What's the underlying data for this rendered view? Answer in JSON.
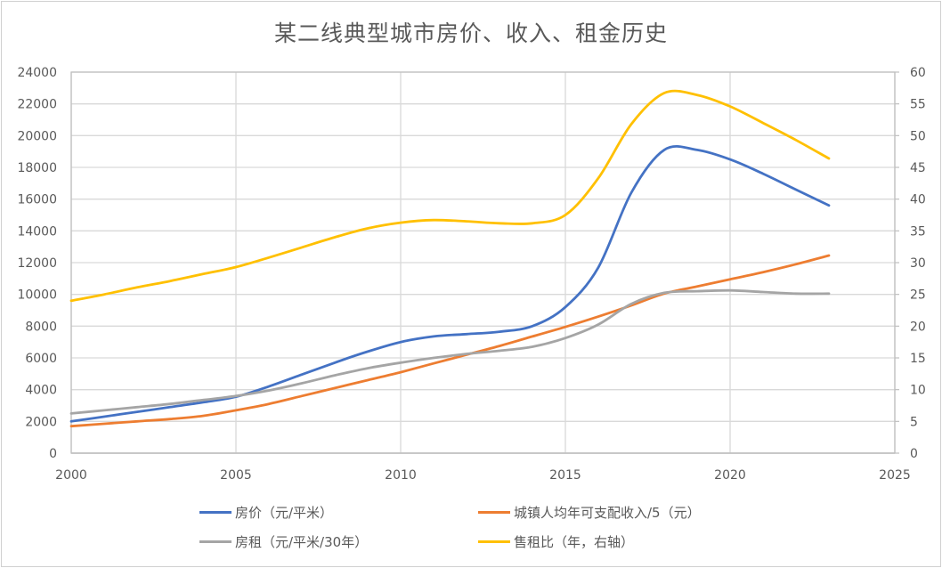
{
  "chart_data": {
    "type": "line",
    "title": "某二线典型城市房价、收入、租金历史",
    "xlabel": "",
    "ylabel": "",
    "xlim": [
      2000,
      2025
    ],
    "ylim": [
      0,
      24000
    ],
    "y2lim": [
      0,
      60
    ],
    "x_ticks": [
      "2000",
      "2005",
      "2010",
      "2015",
      "2020",
      "2025"
    ],
    "y_ticks": [
      "0",
      "2000",
      "4000",
      "6000",
      "8000",
      "10000",
      "12000",
      "14000",
      "16000",
      "18000",
      "20000",
      "22000",
      "24000"
    ],
    "y2_ticks": [
      "0",
      "5",
      "10",
      "15",
      "20",
      "25",
      "30",
      "35",
      "40",
      "45",
      "50",
      "55",
      "60"
    ],
    "grid": true,
    "legend_position": "bottom",
    "x": [
      2000,
      2001,
      2002,
      2003,
      2004,
      2005,
      2006,
      2007,
      2008,
      2009,
      2010,
      2011,
      2012,
      2013,
      2014,
      2015,
      2016,
      2017,
      2018,
      2019,
      2020,
      2021,
      2022,
      2023
    ],
    "series": [
      {
        "name": "房价（元/平米）",
        "axis": "left",
        "color": "#4472C4",
        "values": [
          2000,
          2300,
          2600,
          2900,
          3200,
          3550,
          4200,
          4950,
          5700,
          6400,
          7000,
          7350,
          7500,
          7650,
          8000,
          9200,
          11700,
          16400,
          19100,
          19100,
          18500,
          17600,
          16600,
          15600
        ]
      },
      {
        "name": "城镇人均年可支配收入/5（元）",
        "axis": "left",
        "color": "#ED7D31",
        "values": [
          1700,
          1850,
          2000,
          2150,
          2350,
          2700,
          3100,
          3600,
          4100,
          4600,
          5100,
          5650,
          6200,
          6750,
          7350,
          7950,
          8600,
          9300,
          10050,
          10500,
          10950,
          11400,
          11900,
          12450
        ]
      },
      {
        "name": "房租（元/平米/30年）",
        "axis": "left",
        "color": "#A5A5A5",
        "values": [
          2500,
          2700,
          2900,
          3100,
          3350,
          3600,
          3950,
          4400,
          4900,
          5350,
          5700,
          6000,
          6250,
          6450,
          6700,
          7250,
          8100,
          9400,
          10100,
          10200,
          10250,
          10150,
          10050,
          10050
        ]
      },
      {
        "name": "售租比（年，右轴）",
        "axis": "right",
        "color": "#FFC000",
        "values": [
          24.0,
          25.0,
          26.1,
          27.1,
          28.2,
          29.3,
          30.8,
          32.4,
          34.0,
          35.4,
          36.3,
          36.7,
          36.5,
          36.2,
          36.2,
          37.5,
          43.3,
          51.8,
          56.7,
          56.4,
          54.6,
          52.0,
          49.3,
          46.4
        ]
      }
    ]
  }
}
